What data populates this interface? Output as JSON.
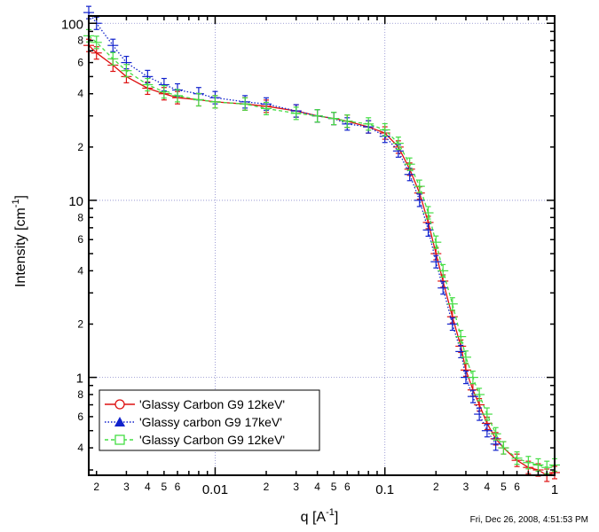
{
  "chart_data": {
    "type": "line",
    "xscale": "log",
    "yscale": "log",
    "xlim": [
      0.0018,
      1.0
    ],
    "ylim": [
      0.28,
      110
    ],
    "xlabel": "q [A",
    "xlabel_sup": "-1",
    "xlabel_end": "]",
    "ylabel": "Intensity [cm",
    "ylabel_sup": "-1",
    "ylabel_end": "]",
    "grid": true,
    "legend_position": "bottom-left",
    "x_decade_labels": [
      "0.01",
      "0.1",
      "1"
    ],
    "x_decade_values": [
      0.01,
      0.1,
      1
    ],
    "x_minor_labels": [
      "2",
      "3",
      "4",
      "5",
      "6",
      "2",
      "3",
      "4",
      "5",
      "6",
      "2",
      "3",
      "4",
      "5",
      "6"
    ],
    "x_minor_values": [
      0.002,
      0.003,
      0.004,
      0.005,
      0.006,
      0.02,
      0.03,
      0.04,
      0.05,
      0.06,
      0.2,
      0.3,
      0.4,
      0.5,
      0.6
    ],
    "y_decade_labels": [
      "100",
      "10",
      "1"
    ],
    "y_decade_values": [
      100,
      10,
      1
    ],
    "y_minor_labels": [
      "8",
      "6",
      "4",
      "2",
      "8",
      "6",
      "4",
      "2",
      "8",
      "6",
      "4"
    ],
    "y_minor_values": [
      80,
      60,
      40,
      20,
      8,
      6,
      4,
      2,
      0.8,
      0.6,
      0.4
    ],
    "series": [
      {
        "name": "'Glassy Carbon G9 12keV'",
        "color": "#dd1111",
        "line": "solid",
        "marker": "circle",
        "x": [
          0.0018,
          0.002,
          0.0025,
          0.003,
          0.004,
          0.005,
          0.006,
          0.008,
          0.01,
          0.015,
          0.02,
          0.03,
          0.04,
          0.05,
          0.06,
          0.08,
          0.1,
          0.12,
          0.14,
          0.16,
          0.18,
          0.2,
          0.22,
          0.25,
          0.28,
          0.3,
          0.33,
          0.36,
          0.4,
          0.45,
          0.5,
          0.6,
          0.7,
          0.8,
          0.9,
          1.0
        ],
        "y": [
          75,
          68,
          58,
          50,
          43,
          40,
          38,
          37,
          36,
          35,
          34,
          32,
          30,
          29,
          28,
          26,
          24,
          20,
          15,
          11,
          7.5,
          5.0,
          3.5,
          2.2,
          1.5,
          1.1,
          0.85,
          0.7,
          0.55,
          0.45,
          0.4,
          0.34,
          0.31,
          0.3,
          0.28,
          0.29
        ]
      },
      {
        "name": "'Glassy carbon G9 17keV'",
        "color": "#1122cc",
        "line": "dotted",
        "marker": "triangle",
        "x": [
          0.0018,
          0.002,
          0.0025,
          0.003,
          0.004,
          0.005,
          0.006,
          0.008,
          0.01,
          0.015,
          0.02,
          0.03,
          0.04,
          0.05,
          0.06,
          0.08,
          0.1,
          0.12,
          0.14,
          0.16,
          0.18,
          0.2,
          0.22,
          0.25,
          0.28,
          0.3,
          0.33,
          0.36,
          0.4,
          0.45
        ],
        "y": [
          115,
          100,
          75,
          60,
          50,
          45,
          42,
          40,
          38,
          36,
          35,
          32,
          30,
          29,
          27,
          26,
          23,
          19,
          14,
          10,
          6.8,
          4.5,
          3.2,
          2.0,
          1.4,
          1.0,
          0.78,
          0.62,
          0.5,
          0.42
        ]
      },
      {
        "name": "'Glassy Carbon G9 12keV'",
        "color": "#44dd44",
        "line": "dashed",
        "marker": "square",
        "x": [
          0.0018,
          0.002,
          0.0025,
          0.003,
          0.004,
          0.005,
          0.006,
          0.008,
          0.01,
          0.015,
          0.02,
          0.03,
          0.04,
          0.05,
          0.06,
          0.08,
          0.1,
          0.12,
          0.14,
          0.16,
          0.18,
          0.2,
          0.22,
          0.25,
          0.28,
          0.3,
          0.33,
          0.36,
          0.4,
          0.45,
          0.5,
          0.6,
          0.7,
          0.8,
          0.9,
          1.0
        ],
        "y": [
          85,
          78,
          63,
          54,
          45,
          41,
          39,
          37,
          36,
          35,
          33,
          31,
          30,
          29,
          28,
          27,
          25,
          21,
          16,
          12,
          8.5,
          5.8,
          4.0,
          2.6,
          1.7,
          1.3,
          1.0,
          0.8,
          0.62,
          0.48,
          0.4,
          0.35,
          0.33,
          0.32,
          0.31,
          0.32
        ]
      }
    ]
  },
  "timestamp": "Fri, Dec 26, 2008, 4:51:53 PM"
}
